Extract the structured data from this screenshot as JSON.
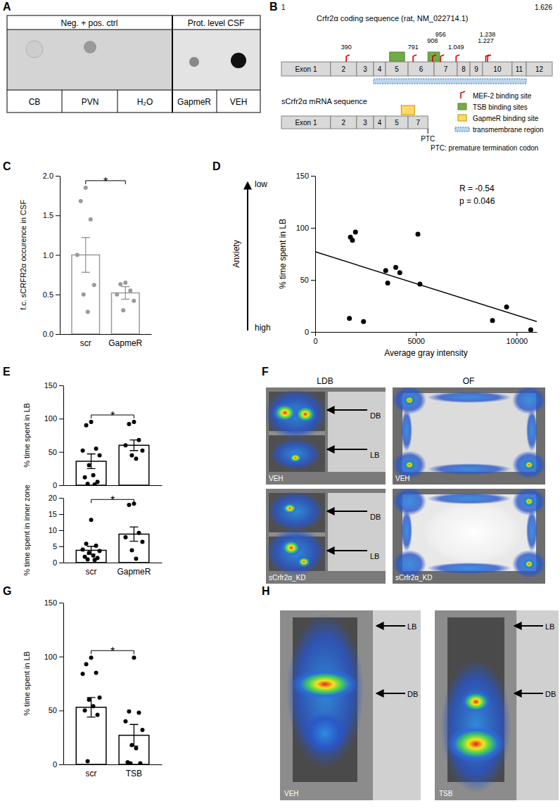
{
  "panel_labels": [
    "A",
    "B",
    "C",
    "D",
    "E",
    "F",
    "G",
    "H"
  ],
  "panel_a": {
    "header": [
      "Neg. + pos. ctrl",
      "Prot. level CSF"
    ],
    "columns": [
      "CB",
      "PVN",
      "H₂O",
      "GapmeR",
      "VEH"
    ]
  },
  "panel_b": {
    "title": "Crfr2α coding sequence (rat, NM_022714.1)",
    "start": 1,
    "end": {
      "value": 1626,
      "label": "1.626"
    },
    "exons": [
      {
        "label": "Exon 1",
        "start": 1,
        "end": 296
      },
      {
        "label": "2",
        "start": 296,
        "end": 452
      },
      {
        "label": "3",
        "start": 452,
        "end": 554
      },
      {
        "label": "4",
        "start": 554,
        "end": 626
      },
      {
        "label": "5",
        "start": 626,
        "end": 761
      },
      {
        "label": "6",
        "start": 761,
        "end": 917
      },
      {
        "label": "7",
        "start": 917,
        "end": 1056
      },
      {
        "label": "8",
        "start": 1056,
        "end": 1132
      },
      {
        "label": "9",
        "start": 1132,
        "end": 1208
      },
      {
        "label": "10",
        "start": 1208,
        "end": 1385
      },
      {
        "label": "11",
        "start": 1385,
        "end": 1470
      },
      {
        "label": "12",
        "start": 1470,
        "end": 1626
      }
    ],
    "mef2_sites": [
      390,
      791,
      908,
      956,
      {
        "value": 1049,
        "label": "1.049"
      },
      {
        "value": 1227,
        "label": "1.227"
      },
      {
        "value": 1238,
        "label": "1.238"
      }
    ],
    "tsb_sites": [
      [
        650,
        740
      ],
      [
        880,
        950
      ]
    ],
    "transmembrane": [
      554,
      1470
    ],
    "short_title": "sCrfr2α mRNA sequence",
    "short_exons": [
      {
        "label": "Exon 1",
        "start": 1,
        "end": 296
      },
      {
        "label": "2",
        "start": 296,
        "end": 452
      },
      {
        "label": "3",
        "start": 452,
        "end": 554
      },
      {
        "label": "4",
        "start": 554,
        "end": 626
      },
      {
        "label": "5",
        "start": 626,
        "end": 761
      },
      {
        "label": "7",
        "start": 761,
        "end": 880
      }
    ],
    "gapmer_site": [
      720,
      800
    ],
    "ptc": {
      "value": 880,
      "label": "PTC"
    },
    "legend": {
      "mef2": "MEF-2 binding site",
      "tsb": "TSB binding sites",
      "gapmer": "GapmeR binding site",
      "transmembrane": "transmembrane region",
      "ptc": "PTC: premature termination codon"
    }
  },
  "chart_data": [
    {
      "type": "bar",
      "categories": [
        "scr",
        "GapmeR"
      ],
      "values": [
        1.0,
        0.52
      ],
      "errors": [
        0.22,
        0.08
      ],
      "points": [
        [
          1.85,
          1.68,
          1.45,
          1.0,
          0.62,
          0.5,
          0.28
        ],
        [
          0.65,
          0.63,
          0.55,
          0.5,
          0.42,
          0.3
        ]
      ],
      "color": "#9a9a9a",
      "ylabel": "f.c. sCRFR2α occurence in CSF",
      "ylim": [
        0,
        2
      ],
      "yticks": [
        {
          "value": 0,
          "label": "0.0"
        },
        {
          "value": 0.5,
          "label": "0.5"
        },
        {
          "value": 1,
          "label": "1.0"
        },
        {
          "value": 1.5,
          "label": "1.5"
        },
        {
          "value": 2,
          "label": "2.0"
        }
      ],
      "annotations": [
        {
          "text": "*",
          "from": 0,
          "to": 1
        }
      ]
    },
    {
      "type": "scatter",
      "x": [
        1700,
        1750,
        1850,
        2000,
        2400,
        3500,
        3600,
        4000,
        4200,
        5100,
        5200,
        8800,
        9500,
        10700
      ],
      "values": [
        13,
        91,
        88,
        96,
        10,
        59,
        47,
        62,
        57,
        94,
        46,
        11,
        24,
        2
      ],
      "color": "#000000",
      "xlabel": "Average gray intensity",
      "ylabel": "% time spent in LB",
      "xlim": [
        0,
        11000
      ],
      "ylim": [
        0,
        150
      ],
      "xticks": [
        0,
        5000,
        10000
      ],
      "yticks": [
        0,
        50,
        100,
        150
      ],
      "trend_line": {
        "x": [
          0,
          11000
        ],
        "values": [
          77,
          10
        ]
      },
      "annotations": [
        "R = -0.54",
        "p = 0.046"
      ],
      "anxiety": {
        "label": "Anxiety",
        "top": "low",
        "bottom": "high"
      }
    },
    {
      "type": "bar",
      "categories": [
        null,
        null
      ],
      "values": [
        36,
        60
      ],
      "errors": [
        11,
        8
      ],
      "points": [
        [
          95,
          90,
          55,
          52,
          45,
          30,
          15,
          12,
          5,
          2,
          1
        ],
        [
          95,
          92,
          68,
          60,
          52,
          45,
          40
        ]
      ],
      "color": "#000000",
      "ylabel": "% time spent in LB",
      "ylim": [
        0,
        150
      ],
      "yticks": [
        0,
        50,
        100,
        150
      ],
      "annotations": [
        {
          "text": "*",
          "from": 0,
          "to": 1
        }
      ]
    },
    {
      "type": "bar",
      "categories": [
        "scr",
        "GapmeR"
      ],
      "values": [
        3.8,
        8.8
      ],
      "errors": [
        1.2,
        2.2
      ],
      "points": [
        [
          13.2,
          5.8,
          5.2,
          4.0,
          3.6,
          3.0,
          2.2,
          1.8,
          1.4,
          1.0,
          0.8
        ],
        [
          18.2,
          17.8,
          9.2,
          7.8,
          6.4,
          3.8,
          1.2
        ]
      ],
      "color": "#000000",
      "ylabel": "% time spent in inner zone",
      "ylim": [
        0,
        20
      ],
      "yticks": [
        0,
        5,
        10,
        15,
        20
      ],
      "annotations": [
        {
          "text": "*",
          "from": 0,
          "to": 1
        }
      ]
    },
    {
      "type": "bar",
      "categories": [
        "scr",
        "TSB"
      ],
      "values": [
        53,
        27
      ],
      "errors": [
        9,
        10
      ],
      "points": [
        [
          99,
          93,
          85,
          84,
          62,
          60,
          54,
          50,
          46,
          3
        ],
        [
          99,
          49,
          48,
          40,
          32,
          18,
          15,
          2,
          1,
          1
        ]
      ],
      "color": "#000000",
      "ylabel": "% time spent in LB",
      "ylim": [
        0,
        150
      ],
      "yticks": [
        0,
        50,
        100,
        150
      ],
      "annotations": [
        {
          "text": "*",
          "from": 0,
          "to": 1
        }
      ]
    }
  ],
  "panel_f": {
    "columns": [
      "LDB",
      "OF"
    ],
    "rows": [
      "VEH",
      "sCrfr2α_KD"
    ],
    "zones": [
      "DB",
      "LB"
    ]
  },
  "panel_h": {
    "images": [
      "VEH",
      "TSB"
    ],
    "zones": [
      "LB",
      "DB"
    ]
  }
}
